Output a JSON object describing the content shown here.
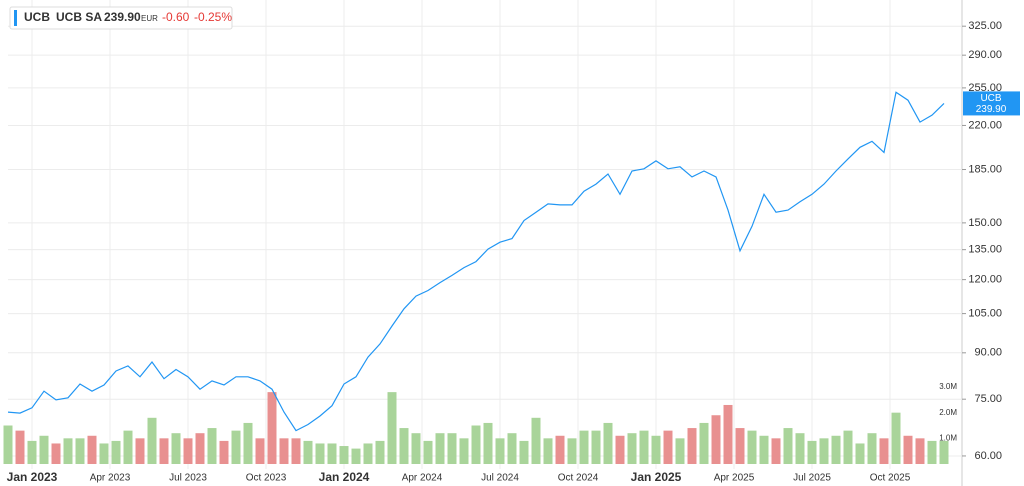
{
  "chart_data": {
    "type": "line",
    "header": {
      "symbol": "UCB",
      "name": "UCB SA",
      "price": "239.90",
      "currency": "EUR",
      "change": "-0.60",
      "change_pct": "-0.25%"
    },
    "x": [
      -4,
      -2,
      0,
      2,
      4,
      6,
      8,
      10,
      12,
      14,
      16,
      18,
      20,
      22,
      24,
      26,
      28,
      30,
      32,
      34,
      36,
      38,
      40,
      42,
      44,
      46,
      48,
      50,
      52,
      54,
      56,
      58,
      60,
      62,
      64,
      66,
      68,
      70,
      72,
      74,
      76,
      78,
      80,
      82,
      84,
      86,
      88,
      90,
      92,
      94,
      96,
      98,
      100,
      102,
      104,
      106,
      108,
      110,
      112,
      114,
      116,
      118,
      120,
      122,
      124,
      126,
      128,
      130,
      132,
      134,
      136,
      138,
      140,
      142,
      144,
      146,
      148,
      150,
      152
    ],
    "xlim": [
      -4,
      155
    ],
    "xticks": [
      {
        "value": 0,
        "label": "Jan 2023"
      },
      {
        "value": 13,
        "label": "Apr 2023"
      },
      {
        "value": 26,
        "label": "Jul 2023"
      },
      {
        "value": 39,
        "label": "Oct 2023"
      },
      {
        "value": 52,
        "label": "Jan 2024"
      },
      {
        "value": 65,
        "label": "Apr 2024"
      },
      {
        "value": 78,
        "label": "Jul 2024"
      },
      {
        "value": 91,
        "label": "Oct 2024"
      },
      {
        "value": 104,
        "label": "Jan 2025"
      },
      {
        "value": 117,
        "label": "Apr 2025"
      },
      {
        "value": 130,
        "label": "Jul 2025"
      },
      {
        "value": 143,
        "label": "Oct 2025"
      }
    ],
    "series": [
      {
        "name": "UCB",
        "color": "#2196f3",
        "values": [
          71.3,
          71,
          72.5,
          77.4,
          74.8,
          75.4,
          79.6,
          77.4,
          79.3,
          83.8,
          85.5,
          81.9,
          86.8,
          81.3,
          84.3,
          81.9,
          78,
          80.6,
          79.3,
          81.9,
          81.9,
          80.6,
          78,
          71.3,
          66.3,
          67.9,
          70.2,
          73.1,
          79.6,
          81.9,
          88.5,
          93.2,
          100,
          107,
          112.5,
          115,
          118.6,
          122,
          125.8,
          128.8,
          135.3,
          139,
          141,
          151.4,
          156.4,
          161.6,
          161,
          161,
          169.9,
          174.7,
          181.8,
          167.8,
          183.9,
          185.5,
          191.4,
          185.5,
          187,
          179.7,
          183.9,
          179.7,
          157.7,
          134.4,
          148,
          167.8,
          156.4,
          157.7,
          163,
          167.8,
          174.7,
          183.9,
          192.9,
          201.9,
          206.7,
          197.8,
          250.7,
          243,
          222.9,
          229,
          239.9
        ]
      }
    ],
    "log_scale": true,
    "ylim": [
      57,
      345
    ],
    "yticks": [
      {
        "value": 60,
        "label": "60.00"
      },
      {
        "value": 75,
        "label": "75.00"
      },
      {
        "value": 90,
        "label": "90.00"
      },
      {
        "value": 105,
        "label": "105.00"
      },
      {
        "value": 120,
        "label": "120.00"
      },
      {
        "value": 135,
        "label": "135.00"
      },
      {
        "value": 150,
        "label": "150.00"
      },
      {
        "value": 185,
        "label": "185.00"
      },
      {
        "value": 220,
        "label": "220.00"
      },
      {
        "value": 255,
        "label": "255.00"
      },
      {
        "value": 290,
        "label": "290.00"
      },
      {
        "value": 325,
        "label": "325.00"
      }
    ],
    "grid": true,
    "volume": {
      "up_color": "#a9d49a",
      "down_color": "#e89090",
      "values": [
        1500000,
        1300000,
        900000,
        1100000,
        800000,
        1000000,
        1000000,
        1100000,
        800000,
        900000,
        1300000,
        1000000,
        1800000,
        1000000,
        1200000,
        1000000,
        1200000,
        1400000,
        900000,
        1300000,
        1600000,
        1000000,
        2800000,
        1000000,
        1000000,
        900000,
        800000,
        800000,
        700000,
        600000,
        800000,
        900000,
        2800000,
        1400000,
        1200000,
        900000,
        1200000,
        1200000,
        1000000,
        1500000,
        1600000,
        1000000,
        1200000,
        900000,
        1800000,
        1000000,
        1100000,
        1000000,
        1300000,
        1300000,
        1600000,
        1100000,
        1200000,
        1300000,
        1100000,
        1300000,
        1000000,
        1400000,
        1600000,
        1900000,
        2300000,
        1400000,
        1300000,
        1100000,
        1000000,
        1400000,
        1200000,
        900000,
        1000000,
        1100000,
        1300000,
        800000,
        1200000,
        1000000,
        2000000,
        1100000,
        1000000,
        900000,
        900000
      ],
      "vlim": [
        0,
        3000000
      ],
      "vticks": [
        {
          "value": 1000000,
          "label": "1.0M"
        },
        {
          "value": 2000000,
          "label": "2.0M"
        },
        {
          "value": 3000000,
          "label": "3.0M"
        }
      ]
    }
  }
}
